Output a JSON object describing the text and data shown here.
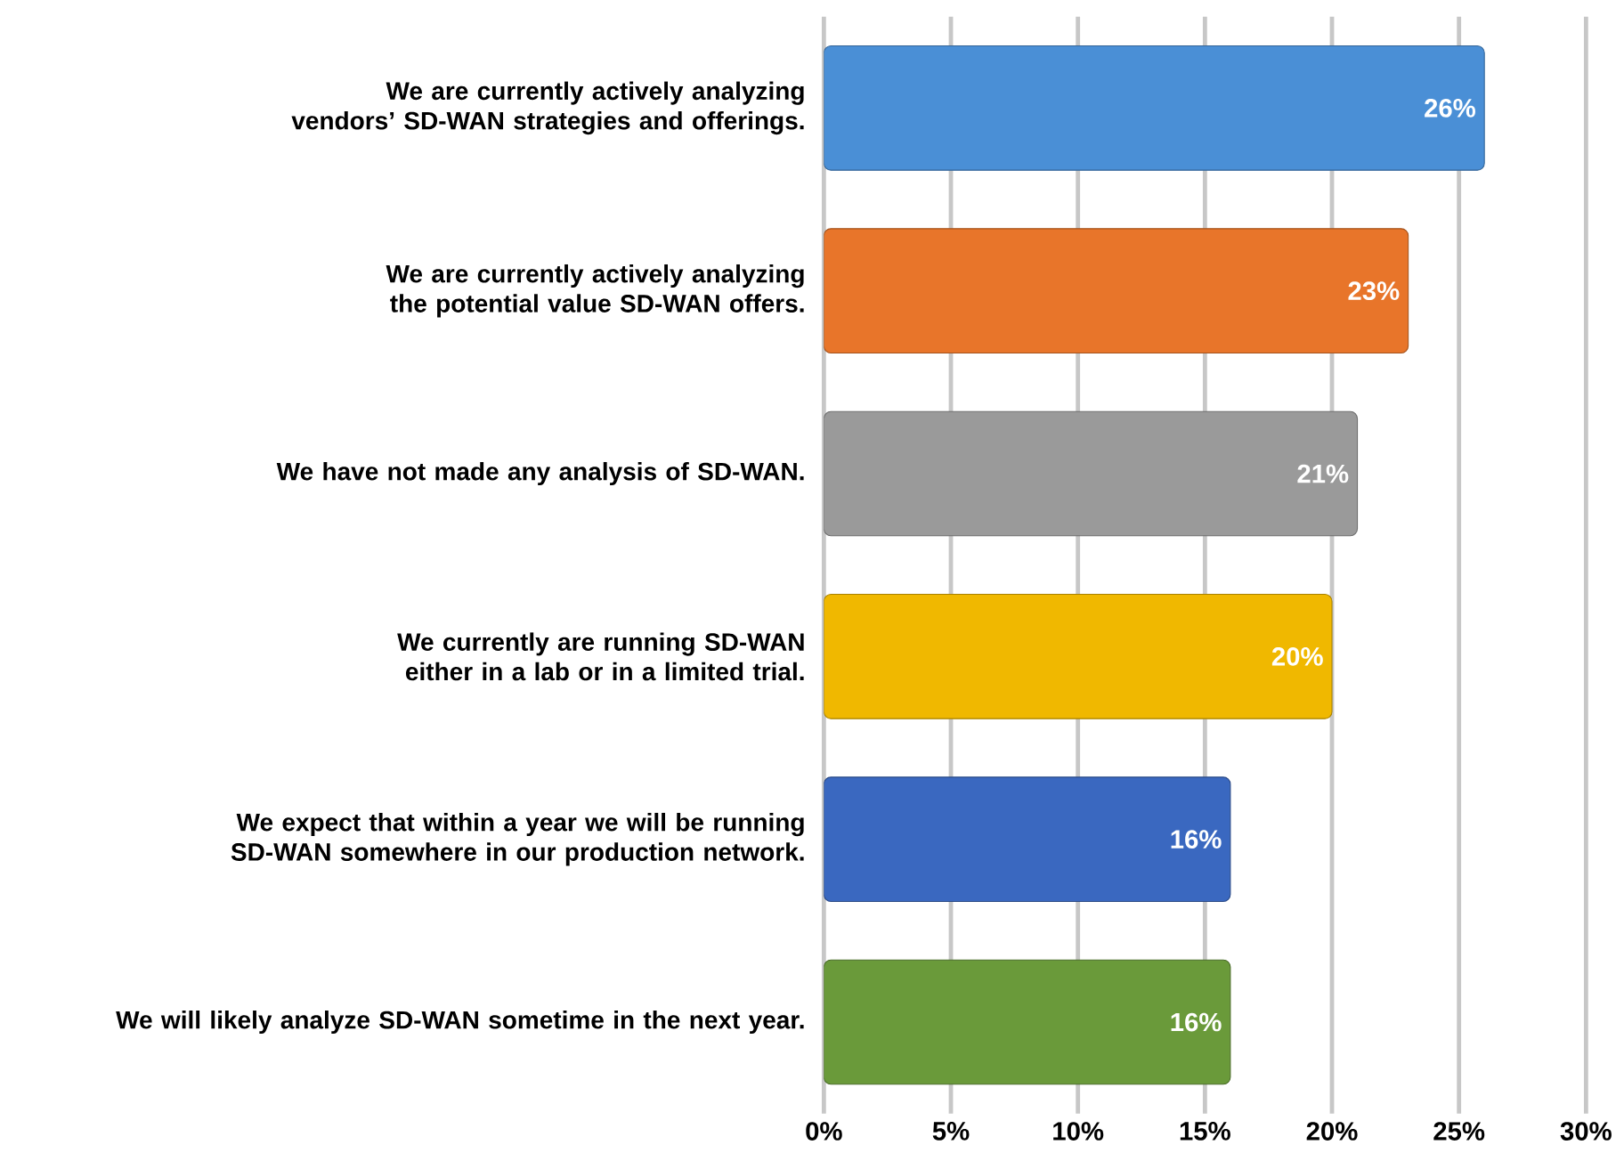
{
  "chart_data": {
    "type": "bar",
    "orientation": "horizontal",
    "categories": [
      "We are currently actively analyzing vendors’ SD-WAN strategies and offerings.",
      "We are currently actively analyzing the potential value SD-WAN offers.",
      "We have not made any analysis of SD-WAN.",
      "We currently are running SD-WAN either in a lab or in a limited trial.",
      "We expect that within a year we will be running SD-WAN somewhere in our production network.",
      "We will likely analyze SD-WAN sometime in the next year."
    ],
    "values": [
      26,
      23,
      21,
      20,
      16,
      16
    ],
    "value_labels": [
      "26%",
      "23%",
      "21%",
      "20%",
      "16%",
      "16%"
    ],
    "colors": [
      "#4a8fd6",
      "#e8752a",
      "#9a9a9a",
      "#f0b800",
      "#3a68c0",
      "#6a9a3a"
    ],
    "xlim": [
      0,
      30
    ],
    "xticks": [
      {
        "value": 0,
        "label": "0%"
      },
      {
        "value": 5,
        "label": "5%"
      },
      {
        "value": 10,
        "label": "10%"
      },
      {
        "value": 15,
        "label": "15%"
      },
      {
        "value": 20,
        "label": "20%"
      },
      {
        "value": 25,
        "label": "25%"
      },
      {
        "value": 30,
        "label": "30%"
      }
    ],
    "grid": "x"
  }
}
